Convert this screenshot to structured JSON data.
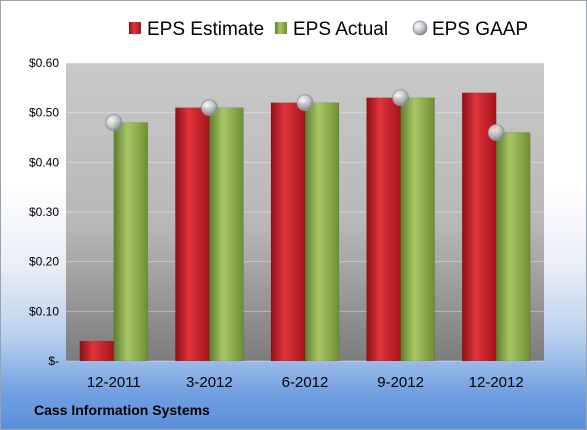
{
  "chart_data": {
    "type": "bar",
    "title": "",
    "xlabel": "",
    "ylabel": "",
    "categories": [
      "12-2011",
      "3-2012",
      "6-2012",
      "9-2012",
      "12-2012"
    ],
    "series": [
      {
        "name": "EPS Estimate",
        "kind": "bar",
        "color": "#c0181f",
        "values": [
          0.04,
          0.51,
          0.52,
          0.53,
          0.54
        ]
      },
      {
        "name": "EPS Actual",
        "kind": "bar",
        "color": "#8db04a",
        "values": [
          0.48,
          0.51,
          0.52,
          0.53,
          0.46
        ]
      },
      {
        "name": "EPS GAAP",
        "kind": "marker",
        "color": "#b8bcc4",
        "values": [
          0.48,
          0.51,
          0.52,
          0.53,
          0.46
        ]
      }
    ],
    "ylim": [
      0,
      0.6
    ],
    "yticks": [
      {
        "value": 0.0,
        "label": "$-"
      },
      {
        "value": 0.1,
        "label": "$0.10"
      },
      {
        "value": 0.2,
        "label": "$0.20"
      },
      {
        "value": 0.3,
        "label": "$0.30"
      },
      {
        "value": 0.4,
        "label": "$0.40"
      },
      {
        "value": 0.5,
        "label": "$0.50"
      },
      {
        "value": 0.6,
        "label": "$0.60"
      }
    ],
    "grid": true,
    "legend_position": "top"
  },
  "footer": {
    "company": "Cass Information Systems"
  }
}
